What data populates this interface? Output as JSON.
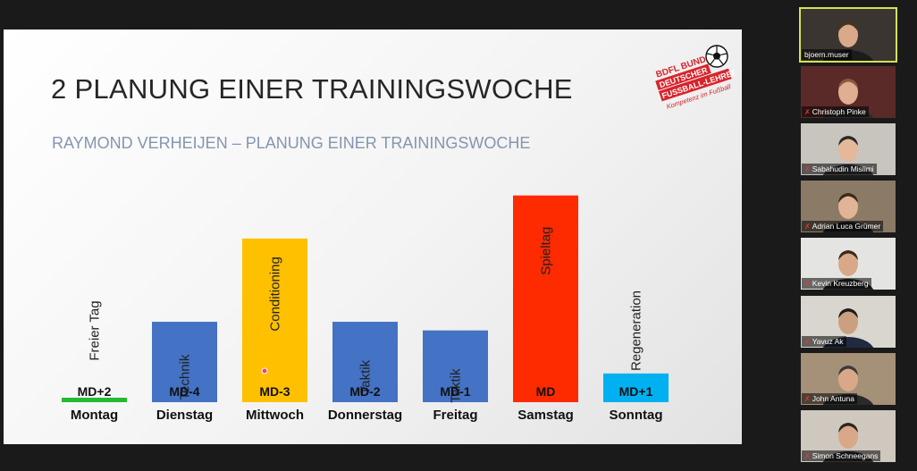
{
  "slide": {
    "title": "2 PLANUNG EINER TRAININGSWOCHE",
    "subtitle": "RAYMOND VERHEIJEN – PLANUNG EINER TRAININGSWOCHE",
    "logo": {
      "line1": "BDFL BUND",
      "line2": "DEUTSCHER",
      "line3": "FUSSBALL-LEHRER",
      "tagline": "Kompetenz im Fußball"
    }
  },
  "chart_data": {
    "type": "bar",
    "categories": [
      "Montag",
      "Dienstag",
      "Mittwoch",
      "Donnerstag",
      "Freitag",
      "Samstag",
      "Sonntag"
    ],
    "match_day_labels": [
      "MD+2",
      "MD-4",
      "MD-3",
      "MD-2",
      "MD-1",
      "MD",
      "MD+1"
    ],
    "bar_labels": [
      "Freier Tag",
      "Technik",
      "Conditioning",
      "Taktik",
      "Taktik",
      "Spieltag",
      "Regeneration"
    ],
    "values": [
      0,
      2.8,
      5.7,
      2.8,
      2.5,
      7.2,
      1.0
    ],
    "colors": [
      "#22bb33",
      "#4472c4",
      "#ffc000",
      "#4472c4",
      "#4472c4",
      "#ff2b00",
      "#00b0f0"
    ],
    "ylim": [
      0,
      8
    ]
  },
  "participants": [
    {
      "name": "bjoern.muser",
      "active": true,
      "muted": false,
      "bg": "#3a3530",
      "skin": "#d9a98a",
      "hair": "#4a3320",
      "shirt": "#1c1c1c"
    },
    {
      "name": "Christoph Pinke",
      "active": false,
      "muted": true,
      "bg": "#5a2a28",
      "skin": "#e0ae90",
      "hair": "#8a5a40",
      "shirt": "#2a2a2a"
    },
    {
      "name": "Sabahudin Mislimi",
      "active": false,
      "muted": true,
      "bg": "#c8c4be",
      "skin": "#e6b89a",
      "hair": "#2a2a2a",
      "shirt": "#3a3a3a"
    },
    {
      "name": "Adrian Luca Grümer",
      "active": false,
      "muted": true,
      "bg": "#8a7a66",
      "skin": "#e2b496",
      "hair": "#3a2a1c",
      "shirt": "#1e1e1e"
    },
    {
      "name": "Kevin Kreuzberg",
      "active": false,
      "muted": true,
      "bg": "#e4e4e2",
      "skin": "#d8a888",
      "hair": "#3b2a1c",
      "shirt": "#262626"
    },
    {
      "name": "Yavuz Ak",
      "active": false,
      "muted": true,
      "bg": "#d9d6cf",
      "skin": "#caa080",
      "hair": "#1e1a16",
      "shirt": "#202a40"
    },
    {
      "name": "John Antuna",
      "active": false,
      "muted": true,
      "bg": "#a59078",
      "skin": "#d8a888",
      "hair": "#3a3a3a",
      "shirt": "#2a2a2a"
    },
    {
      "name": "Simon Schneegans",
      "active": false,
      "muted": true,
      "bg": "#cfc8be",
      "skin": "#d8a888",
      "hair": "#2e2620",
      "shirt": "#303030"
    }
  ]
}
